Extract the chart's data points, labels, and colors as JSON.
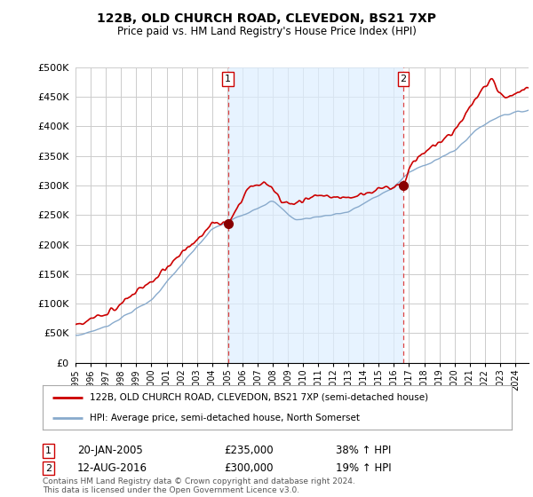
{
  "title": "122B, OLD CHURCH ROAD, CLEVEDON, BS21 7XP",
  "subtitle": "Price paid vs. HM Land Registry's House Price Index (HPI)",
  "background_color": "#ffffff",
  "plot_bg_color": "#ffffff",
  "grid_color": "#cccccc",
  "red_color": "#cc0000",
  "blue_color": "#88aacc",
  "vline_color": "#dd4444",
  "shade_color": "#ddeeff",
  "sale1_year": 2005.05,
  "sale1_price": 235000,
  "sale2_year": 2016.62,
  "sale2_price": 300000,
  "ylim": [
    0,
    500000
  ],
  "xlim_start": 1995,
  "xlim_end": 2024.9,
  "yticks": [
    0,
    50000,
    100000,
    150000,
    200000,
    250000,
    300000,
    350000,
    400000,
    450000,
    500000
  ],
  "ytick_labels": [
    "£0",
    "£50K",
    "£100K",
    "£150K",
    "£200K",
    "£250K",
    "£300K",
    "£350K",
    "£400K",
    "£450K",
    "£500K"
  ],
  "legend_line1": "122B, OLD CHURCH ROAD, CLEVEDON, BS21 7XP (semi-detached house)",
  "legend_line2": "HPI: Average price, semi-detached house, North Somerset",
  "table_row1_num": "1",
  "table_row1_date": "20-JAN-2005",
  "table_row1_price": "£235,000",
  "table_row1_hpi": "38% ↑ HPI",
  "table_row2_num": "2",
  "table_row2_date": "12-AUG-2016",
  "table_row2_price": "£300,000",
  "table_row2_hpi": "19% ↑ HPI",
  "footer": "Contains HM Land Registry data © Crown copyright and database right 2024.\nThis data is licensed under the Open Government Licence v3.0."
}
